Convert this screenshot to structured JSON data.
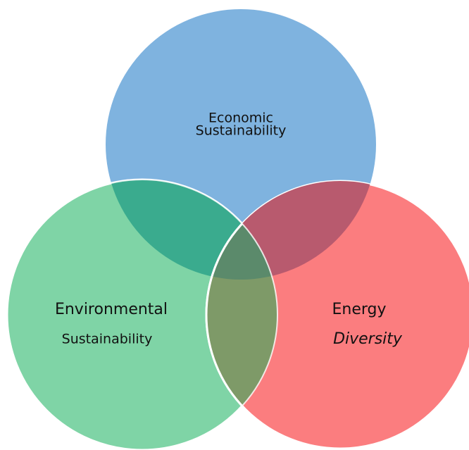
{
  "nodes": [
    {
      "lines": [
        "Economic",
        "Sustainability"
      ]
    },
    {
      "lines": [
        "Environmental",
        "Sustainability"
      ]
    },
    {
      "lines": [
        "Energy",
        "Diversity"
      ]
    }
  ]
}
